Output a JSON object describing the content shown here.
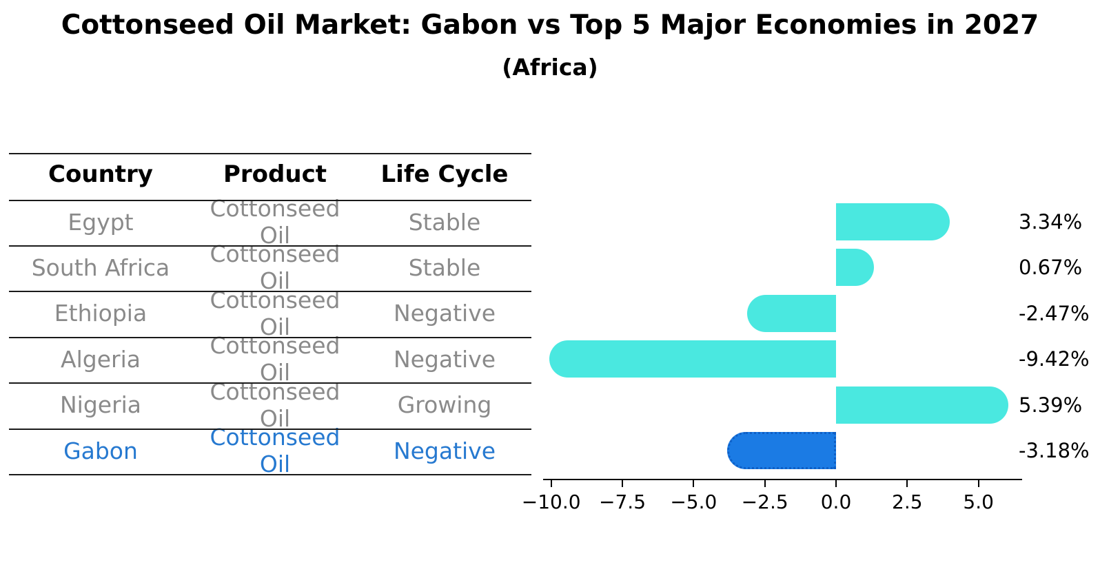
{
  "title": "Cottonseed Oil Market: Gabon vs Top 5 Major Economies in 2027",
  "subtitle": "(Africa)",
  "table": {
    "headers": [
      "Country",
      "Product",
      "Life Cycle"
    ],
    "rows": [
      {
        "country": "Egypt",
        "product": "Cottonseed Oil",
        "life_cycle": "Stable",
        "highlight": false
      },
      {
        "country": "South Africa",
        "product": "Cottonseed Oil",
        "life_cycle": "Stable",
        "highlight": false
      },
      {
        "country": "Ethiopia",
        "product": "Cottonseed Oil",
        "life_cycle": "Negative",
        "highlight": false
      },
      {
        "country": "Algeria",
        "product": "Cottonseed Oil",
        "life_cycle": "Negative",
        "highlight": false
      },
      {
        "country": "Nigeria",
        "product": "Cottonseed Oil",
        "life_cycle": "Growing",
        "highlight": false
      },
      {
        "country": "Gabon",
        "product": "Cottonseed Oil",
        "life_cycle": "Negative",
        "highlight": true
      }
    ]
  },
  "chart_data": {
    "type": "bar",
    "orientation": "horizontal",
    "title": "Cottonseed Oil Market: Gabon vs Top 5 Major Economies in 2027",
    "subtitle": "(Africa)",
    "categories": [
      "Egypt",
      "South Africa",
      "Ethiopia",
      "Algeria",
      "Nigeria",
      "Gabon"
    ],
    "values": [
      3.34,
      0.67,
      -2.47,
      -9.42,
      5.39,
      -3.18
    ],
    "value_labels": [
      "3.34%",
      "0.67%",
      "-2.47%",
      "-9.42%",
      "5.39%",
      "-3.18%"
    ],
    "highlight_index": 5,
    "x_tick_values": [
      -10.0,
      -7.5,
      -5.0,
      -2.5,
      0.0,
      2.5,
      5.0
    ],
    "x_tick_labels": [
      "−10.0",
      "−7.5",
      "−5.0",
      "−2.5",
      "0.0",
      "2.5",
      "5.0"
    ],
    "xlim": [
      -10.3,
      6.5
    ],
    "grid": false,
    "legend": "none",
    "colors": {
      "bar_default": "#4ae8e0",
      "bar_highlight": "#1b7be4",
      "bar_highlight_edge": "#0e5fc6",
      "row_text": "#8a8a8a",
      "highlight_text": "#2679d0",
      "axis": "#000000"
    }
  }
}
